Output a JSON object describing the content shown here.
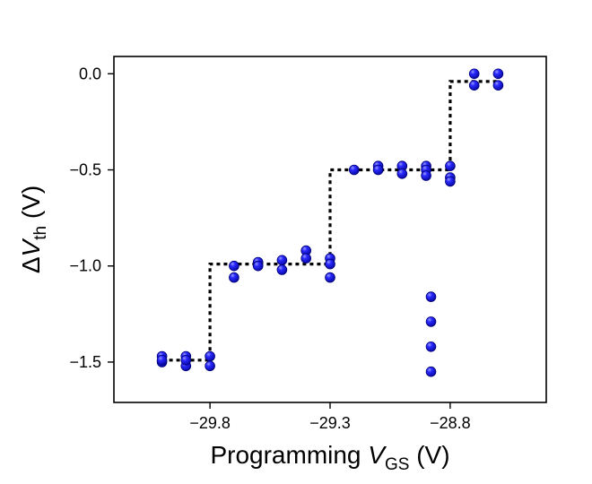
{
  "chart_data": {
    "type": "scatter",
    "title": "",
    "xlabel": {
      "prefix": "Programming ",
      "var": "V",
      "sub": "GS",
      "unit": " (V)"
    },
    "ylabel": {
      "prefix": "Δ",
      "var": "V",
      "sub": "th",
      "unit": " (V)"
    },
    "xlim": [
      -30.2,
      -28.4
    ],
    "ylim": [
      -1.71,
      0.09
    ],
    "x_ticks": [
      -29.8,
      -29.3,
      -28.8
    ],
    "x_tick_labels": [
      "−29.8",
      "−29.3",
      "−28.8"
    ],
    "y_ticks": [
      0.0,
      -0.5,
      -1.0,
      -1.5
    ],
    "y_tick_labels": [
      "0.0",
      "−0.5",
      "−1.0",
      "−1.5"
    ],
    "grid": false,
    "legend": "none",
    "colors": {
      "points": "#1010ee",
      "points_edge": "#00007a",
      "step_line": "#000000"
    },
    "points": [
      [
        -30.0,
        -1.47
      ],
      [
        -30.0,
        -1.5
      ],
      [
        -30.0,
        -1.49
      ],
      [
        -29.9,
        -1.47
      ],
      [
        -29.9,
        -1.52
      ],
      [
        -29.9,
        -1.49
      ],
      [
        -29.8,
        -1.47
      ],
      [
        -29.8,
        -1.52
      ],
      [
        -29.7,
        -1.0
      ],
      [
        -29.7,
        -1.06
      ],
      [
        -29.6,
        -0.98
      ],
      [
        -29.6,
        -1.0
      ],
      [
        -29.5,
        -0.97
      ],
      [
        -29.5,
        -1.02
      ],
      [
        -29.4,
        -0.92
      ],
      [
        -29.4,
        -0.96
      ],
      [
        -29.3,
        -0.96
      ],
      [
        -29.3,
        -0.99
      ],
      [
        -29.3,
        -1.06
      ],
      [
        -29.2,
        -0.5
      ],
      [
        -29.1,
        -0.48
      ],
      [
        -29.1,
        -0.5
      ],
      [
        -29.0,
        -0.48
      ],
      [
        -29.0,
        -0.52
      ],
      [
        -28.9,
        -0.48
      ],
      [
        -28.9,
        -0.5
      ],
      [
        -28.9,
        -0.53
      ],
      [
        -28.88,
        -1.16
      ],
      [
        -28.88,
        -1.29
      ],
      [
        -28.88,
        -1.42
      ],
      [
        -28.88,
        -1.55
      ],
      [
        -28.8,
        -0.48
      ],
      [
        -28.8,
        -0.54
      ],
      [
        -28.8,
        -0.56
      ],
      [
        -28.7,
        0.0
      ],
      [
        -28.7,
        -0.06
      ],
      [
        -28.6,
        0.0
      ],
      [
        -28.6,
        -0.06
      ]
    ],
    "step_line": [
      [
        -30.0,
        -1.49
      ],
      [
        -29.8,
        -1.49
      ],
      [
        -29.8,
        -0.99
      ],
      [
        -29.3,
        -0.99
      ],
      [
        -29.3,
        -0.5
      ],
      [
        -28.8,
        -0.5
      ],
      [
        -28.8,
        -0.04
      ],
      [
        -28.6,
        -0.04
      ]
    ]
  }
}
